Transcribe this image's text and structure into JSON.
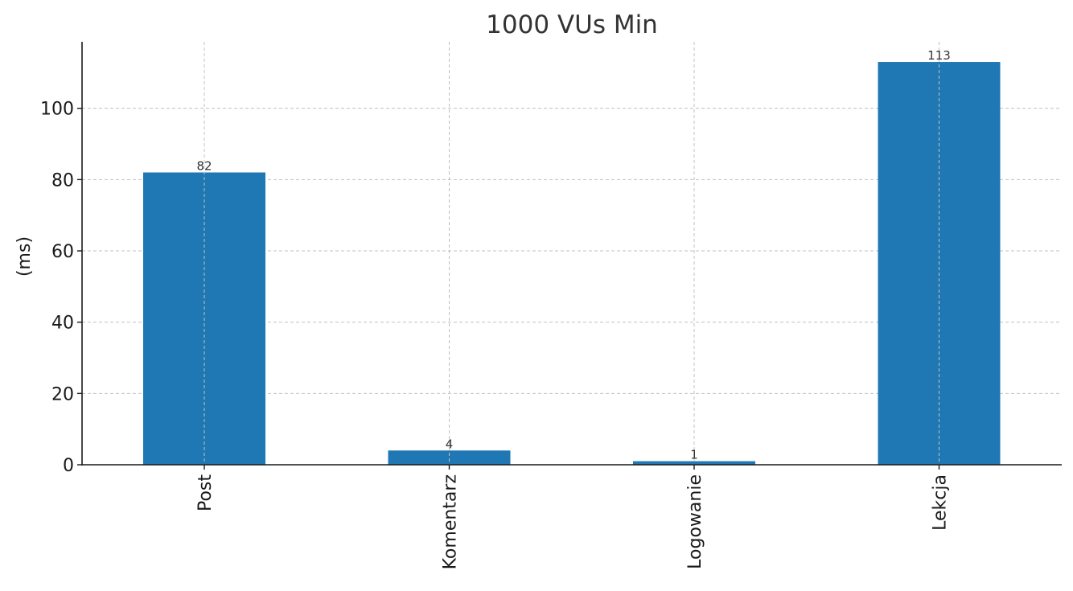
{
  "chart_data": {
    "type": "bar",
    "title": "1000 VUs Min",
    "xlabel": "",
    "ylabel": "(ms)",
    "categories": [
      "Post",
      "Komentarz",
      "Logowanie",
      "Lekcja"
    ],
    "values": [
      82,
      4,
      1,
      113
    ],
    "data_labels": [
      "82",
      "4",
      "1",
      "113"
    ],
    "ylim": [
      0,
      118.65
    ],
    "yticks": [
      0,
      20,
      40,
      60,
      80,
      100
    ],
    "ytick_labels": [
      "0",
      "20",
      "40",
      "60",
      "80",
      "100"
    ],
    "x_tick_rotation": "vertical",
    "grid": true,
    "bar_color": "#1f77b4",
    "grid_color": "#c0c0c0",
    "legend": "none"
  }
}
